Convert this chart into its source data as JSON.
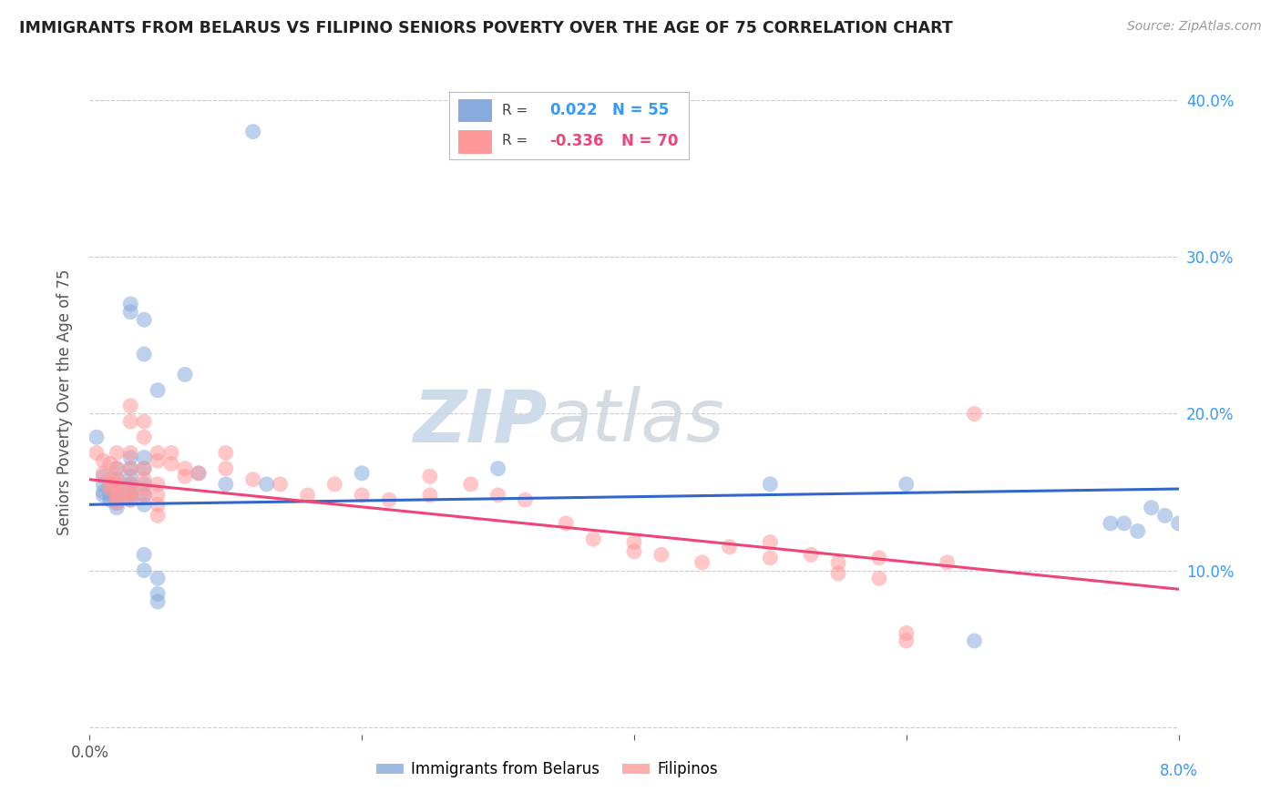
{
  "title": "IMMIGRANTS FROM BELARUS VS FILIPINO SENIORS POVERTY OVER THE AGE OF 75 CORRELATION CHART",
  "source": "Source: ZipAtlas.com",
  "ylabel": "Seniors Poverty Over the Age of 75",
  "xlim": [
    0.0,
    0.08
  ],
  "ylim": [
    -0.005,
    0.42
  ],
  "yticks": [
    0.0,
    0.1,
    0.2,
    0.3,
    0.4
  ],
  "ytick_labels_right": [
    "",
    "10.0%",
    "20.0%",
    "30.0%",
    "40.0%"
  ],
  "xtick_label_left": "0.0%",
  "xtick_label_right": "8.0%",
  "legend_label1": "Immigrants from Belarus",
  "legend_label2": "Filipinos",
  "blue_color": "#88AADD",
  "pink_color": "#FF9999",
  "line_blue": "#3366CC",
  "line_pink": "#EE4477",
  "watermark_color": "#C8D8E8",
  "blue_scatter": [
    [
      0.0005,
      0.185
    ],
    [
      0.001,
      0.16
    ],
    [
      0.001,
      0.155
    ],
    [
      0.001,
      0.15
    ],
    [
      0.001,
      0.148
    ],
    [
      0.0015,
      0.155
    ],
    [
      0.0015,
      0.15
    ],
    [
      0.0015,
      0.148
    ],
    [
      0.0015,
      0.145
    ],
    [
      0.002,
      0.165
    ],
    [
      0.002,
      0.158
    ],
    [
      0.002,
      0.152
    ],
    [
      0.002,
      0.148
    ],
    [
      0.002,
      0.145
    ],
    [
      0.002,
      0.143
    ],
    [
      0.002,
      0.14
    ],
    [
      0.003,
      0.27
    ],
    [
      0.003,
      0.265
    ],
    [
      0.003,
      0.172
    ],
    [
      0.003,
      0.165
    ],
    [
      0.003,
      0.16
    ],
    [
      0.003,
      0.155
    ],
    [
      0.003,
      0.152
    ],
    [
      0.003,
      0.148
    ],
    [
      0.003,
      0.145
    ],
    [
      0.004,
      0.26
    ],
    [
      0.004,
      0.238
    ],
    [
      0.004,
      0.172
    ],
    [
      0.004,
      0.165
    ],
    [
      0.004,
      0.155
    ],
    [
      0.004,
      0.148
    ],
    [
      0.004,
      0.142
    ],
    [
      0.004,
      0.11
    ],
    [
      0.004,
      0.1
    ],
    [
      0.005,
      0.215
    ],
    [
      0.005,
      0.08
    ],
    [
      0.005,
      0.095
    ],
    [
      0.005,
      0.085
    ],
    [
      0.007,
      0.225
    ],
    [
      0.008,
      0.162
    ],
    [
      0.01,
      0.155
    ],
    [
      0.012,
      0.38
    ],
    [
      0.013,
      0.155
    ],
    [
      0.02,
      0.162
    ],
    [
      0.03,
      0.165
    ],
    [
      0.05,
      0.155
    ],
    [
      0.06,
      0.155
    ],
    [
      0.065,
      0.055
    ],
    [
      0.075,
      0.13
    ],
    [
      0.076,
      0.13
    ],
    [
      0.077,
      0.125
    ],
    [
      0.078,
      0.14
    ],
    [
      0.079,
      0.135
    ],
    [
      0.08,
      0.13
    ]
  ],
  "pink_scatter": [
    [
      0.0005,
      0.175
    ],
    [
      0.001,
      0.17
    ],
    [
      0.001,
      0.162
    ],
    [
      0.0015,
      0.168
    ],
    [
      0.0015,
      0.158
    ],
    [
      0.0015,
      0.155
    ],
    [
      0.0015,
      0.152
    ],
    [
      0.002,
      0.175
    ],
    [
      0.002,
      0.165
    ],
    [
      0.002,
      0.158
    ],
    [
      0.002,
      0.155
    ],
    [
      0.002,
      0.152
    ],
    [
      0.002,
      0.148
    ],
    [
      0.002,
      0.145
    ],
    [
      0.002,
      0.143
    ],
    [
      0.003,
      0.205
    ],
    [
      0.003,
      0.195
    ],
    [
      0.003,
      0.175
    ],
    [
      0.003,
      0.165
    ],
    [
      0.003,
      0.155
    ],
    [
      0.003,
      0.15
    ],
    [
      0.003,
      0.148
    ],
    [
      0.003,
      0.145
    ],
    [
      0.004,
      0.195
    ],
    [
      0.004,
      0.185
    ],
    [
      0.004,
      0.165
    ],
    [
      0.004,
      0.158
    ],
    [
      0.004,
      0.152
    ],
    [
      0.004,
      0.148
    ],
    [
      0.005,
      0.175
    ],
    [
      0.005,
      0.17
    ],
    [
      0.005,
      0.155
    ],
    [
      0.005,
      0.148
    ],
    [
      0.005,
      0.142
    ],
    [
      0.005,
      0.135
    ],
    [
      0.006,
      0.175
    ],
    [
      0.006,
      0.168
    ],
    [
      0.007,
      0.165
    ],
    [
      0.007,
      0.16
    ],
    [
      0.008,
      0.162
    ],
    [
      0.01,
      0.175
    ],
    [
      0.01,
      0.165
    ],
    [
      0.012,
      0.158
    ],
    [
      0.014,
      0.155
    ],
    [
      0.016,
      0.148
    ],
    [
      0.018,
      0.155
    ],
    [
      0.02,
      0.148
    ],
    [
      0.022,
      0.145
    ],
    [
      0.025,
      0.16
    ],
    [
      0.025,
      0.148
    ],
    [
      0.028,
      0.155
    ],
    [
      0.03,
      0.148
    ],
    [
      0.032,
      0.145
    ],
    [
      0.035,
      0.13
    ],
    [
      0.037,
      0.12
    ],
    [
      0.04,
      0.118
    ],
    [
      0.04,
      0.112
    ],
    [
      0.042,
      0.11
    ],
    [
      0.045,
      0.105
    ],
    [
      0.047,
      0.115
    ],
    [
      0.05,
      0.118
    ],
    [
      0.05,
      0.108
    ],
    [
      0.053,
      0.11
    ],
    [
      0.055,
      0.105
    ],
    [
      0.055,
      0.098
    ],
    [
      0.058,
      0.108
    ],
    [
      0.058,
      0.095
    ],
    [
      0.06,
      0.06
    ],
    [
      0.06,
      0.055
    ],
    [
      0.063,
      0.105
    ],
    [
      0.065,
      0.2
    ]
  ],
  "blue_line_x": [
    0.0,
    0.08
  ],
  "blue_line_y": [
    0.142,
    0.152
  ],
  "pink_line_x": [
    0.0,
    0.08
  ],
  "pink_line_y": [
    0.158,
    0.088
  ]
}
